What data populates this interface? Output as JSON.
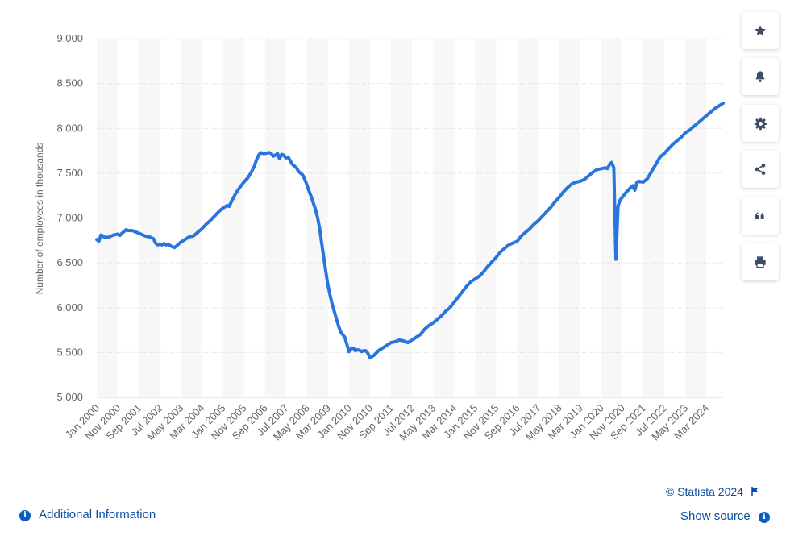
{
  "chart_data": {
    "type": "line",
    "title": "",
    "xlabel": "",
    "ylabel": "Number of employees in thousands",
    "ylim": [
      5000,
      9000
    ],
    "yticks": [
      5000,
      5500,
      6000,
      6500,
      7000,
      7500,
      8000,
      8500,
      9000
    ],
    "ytick_labels": [
      "5,000",
      "5,500",
      "6,000",
      "6,500",
      "7,000",
      "7,500",
      "8,000",
      "8,500",
      "9,000"
    ],
    "xtick_labels": [
      "Jan 2000",
      "Nov 2000",
      "Sep 2001",
      "Jul 2002",
      "May 2003",
      "Mar 2004",
      "Jan 2005",
      "Nov 2005",
      "Sep 2006",
      "Jul 2007",
      "May 2008",
      "Mar 2009",
      "Jan 2010",
      "Nov 2010",
      "Sep 2011",
      "Jul 2012",
      "May 2013",
      "Mar 2014",
      "Jan 2015",
      "Nov 2015",
      "Sep 2016",
      "Jul 2017",
      "May 2018",
      "Mar 2019",
      "Jan 2020",
      "Nov 2020",
      "Sep 2021",
      "Jul 2022",
      "May 2023",
      "Mar 2024"
    ],
    "x_months": [
      0,
      10,
      20,
      30,
      40,
      50,
      60,
      70,
      80,
      90,
      100,
      110,
      120,
      130,
      140,
      150,
      160,
      170,
      180,
      190,
      200,
      210,
      220,
      230,
      240,
      250,
      260,
      270,
      280,
      290
    ],
    "x_range_months": [
      0,
      298
    ],
    "series": [
      {
        "name": "Employees",
        "color": "#2876dd",
        "points": [
          [
            0,
            6760
          ],
          [
            1,
            6740
          ],
          [
            2,
            6810
          ],
          [
            3,
            6800
          ],
          [
            4,
            6780
          ],
          [
            6,
            6790
          ],
          [
            8,
            6810
          ],
          [
            10,
            6820
          ],
          [
            11,
            6805
          ],
          [
            12,
            6830
          ],
          [
            13,
            6850
          ],
          [
            14,
            6870
          ],
          [
            15,
            6860
          ],
          [
            17,
            6860
          ],
          [
            19,
            6840
          ],
          [
            21,
            6820
          ],
          [
            23,
            6800
          ],
          [
            25,
            6790
          ],
          [
            27,
            6770
          ],
          [
            28,
            6720
          ],
          [
            29,
            6700
          ],
          [
            30,
            6710
          ],
          [
            31,
            6700
          ],
          [
            32,
            6715
          ],
          [
            33,
            6700
          ],
          [
            34,
            6710
          ],
          [
            35,
            6690
          ],
          [
            36,
            6680
          ],
          [
            37,
            6670
          ],
          [
            38,
            6690
          ],
          [
            40,
            6730
          ],
          [
            42,
            6760
          ],
          [
            44,
            6790
          ],
          [
            46,
            6800
          ],
          [
            48,
            6840
          ],
          [
            50,
            6880
          ],
          [
            52,
            6930
          ],
          [
            54,
            6970
          ],
          [
            56,
            7020
          ],
          [
            58,
            7070
          ],
          [
            60,
            7110
          ],
          [
            62,
            7140
          ],
          [
            63,
            7130
          ],
          [
            64,
            7180
          ],
          [
            66,
            7270
          ],
          [
            68,
            7340
          ],
          [
            70,
            7400
          ],
          [
            72,
            7450
          ],
          [
            74,
            7530
          ],
          [
            75,
            7580
          ],
          [
            76,
            7650
          ],
          [
            77,
            7700
          ],
          [
            78,
            7730
          ],
          [
            79,
            7720
          ],
          [
            80,
            7720
          ],
          [
            82,
            7730
          ],
          [
            83,
            7720
          ],
          [
            84,
            7690
          ],
          [
            85,
            7700
          ],
          [
            86,
            7720
          ],
          [
            87,
            7660
          ],
          [
            88,
            7710
          ],
          [
            89,
            7700
          ],
          [
            90,
            7670
          ],
          [
            91,
            7680
          ],
          [
            92,
            7640
          ],
          [
            93,
            7600
          ],
          [
            95,
            7560
          ],
          [
            96,
            7520
          ],
          [
            97,
            7500
          ],
          [
            98,
            7480
          ],
          [
            99,
            7430
          ],
          [
            100,
            7370
          ],
          [
            101,
            7300
          ],
          [
            102,
            7240
          ],
          [
            103,
            7170
          ],
          [
            104,
            7100
          ],
          [
            105,
            7010
          ],
          [
            106,
            6890
          ],
          [
            107,
            6720
          ],
          [
            108,
            6560
          ],
          [
            109,
            6400
          ],
          [
            110,
            6250
          ],
          [
            111,
            6140
          ],
          [
            112,
            6040
          ],
          [
            113,
            5960
          ],
          [
            114,
            5880
          ],
          [
            115,
            5800
          ],
          [
            116,
            5730
          ],
          [
            117,
            5700
          ],
          [
            118,
            5670
          ],
          [
            119,
            5590
          ],
          [
            120,
            5510
          ],
          [
            121,
            5540
          ],
          [
            122,
            5550
          ],
          [
            123,
            5520
          ],
          [
            124,
            5530
          ],
          [
            125,
            5525
          ],
          [
            126,
            5510
          ],
          [
            127,
            5520
          ],
          [
            128,
            5520
          ],
          [
            129,
            5490
          ],
          [
            130,
            5440
          ],
          [
            132,
            5470
          ],
          [
            134,
            5520
          ],
          [
            136,
            5550
          ],
          [
            138,
            5580
          ],
          [
            140,
            5610
          ],
          [
            142,
            5620
          ],
          [
            144,
            5640
          ],
          [
            146,
            5630
          ],
          [
            148,
            5610
          ],
          [
            150,
            5640
          ],
          [
            152,
            5670
          ],
          [
            154,
            5700
          ],
          [
            156,
            5760
          ],
          [
            158,
            5800
          ],
          [
            160,
            5830
          ],
          [
            162,
            5870
          ],
          [
            164,
            5910
          ],
          [
            166,
            5960
          ],
          [
            168,
            6000
          ],
          [
            170,
            6060
          ],
          [
            172,
            6120
          ],
          [
            174,
            6180
          ],
          [
            176,
            6240
          ],
          [
            178,
            6290
          ],
          [
            180,
            6320
          ],
          [
            182,
            6350
          ],
          [
            184,
            6400
          ],
          [
            186,
            6460
          ],
          [
            188,
            6510
          ],
          [
            190,
            6560
          ],
          [
            192,
            6620
          ],
          [
            194,
            6660
          ],
          [
            196,
            6700
          ],
          [
            198,
            6720
          ],
          [
            200,
            6740
          ],
          [
            202,
            6800
          ],
          [
            204,
            6840
          ],
          [
            206,
            6880
          ],
          [
            208,
            6930
          ],
          [
            210,
            6970
          ],
          [
            212,
            7020
          ],
          [
            214,
            7070
          ],
          [
            216,
            7120
          ],
          [
            218,
            7180
          ],
          [
            220,
            7230
          ],
          [
            222,
            7290
          ],
          [
            224,
            7340
          ],
          [
            226,
            7380
          ],
          [
            228,
            7400
          ],
          [
            230,
            7410
          ],
          [
            232,
            7430
          ],
          [
            234,
            7470
          ],
          [
            236,
            7510
          ],
          [
            238,
            7540
          ],
          [
            240,
            7550
          ],
          [
            242,
            7560
          ],
          [
            243,
            7550
          ],
          [
            244,
            7600
          ],
          [
            245,
            7620
          ],
          [
            246,
            7560
          ],
          [
            247,
            6540
          ],
          [
            248,
            7130
          ],
          [
            249,
            7200
          ],
          [
            250,
            7230
          ],
          [
            252,
            7290
          ],
          [
            254,
            7340
          ],
          [
            255,
            7360
          ],
          [
            256,
            7310
          ],
          [
            257,
            7400
          ],
          [
            258,
            7410
          ],
          [
            260,
            7400
          ],
          [
            262,
            7440
          ],
          [
            264,
            7520
          ],
          [
            266,
            7600
          ],
          [
            268,
            7680
          ],
          [
            270,
            7720
          ],
          [
            272,
            7770
          ],
          [
            274,
            7820
          ],
          [
            276,
            7860
          ],
          [
            278,
            7900
          ],
          [
            280,
            7950
          ],
          [
            282,
            7980
          ],
          [
            284,
            8020
          ],
          [
            286,
            8060
          ],
          [
            288,
            8100
          ],
          [
            290,
            8140
          ],
          [
            292,
            8180
          ],
          [
            294,
            8220
          ],
          [
            296,
            8250
          ],
          [
            298,
            8280
          ]
        ]
      }
    ]
  },
  "side_toolbar": [
    {
      "name": "favorite",
      "icon": "star-icon"
    },
    {
      "name": "notification",
      "icon": "bell-icon"
    },
    {
      "name": "settings",
      "icon": "gear-icon"
    },
    {
      "name": "share",
      "icon": "share-icon"
    },
    {
      "name": "cite",
      "icon": "quote-icon"
    },
    {
      "name": "print",
      "icon": "print-icon"
    }
  ],
  "footer": {
    "copyright": "© Statista 2024",
    "additional_info": "Additional Information",
    "show_source": "Show source"
  },
  "colors": {
    "line": "#2876dd",
    "icon": "#3d4d63",
    "link": "#0b4fa6",
    "axis_text": "#666666"
  }
}
